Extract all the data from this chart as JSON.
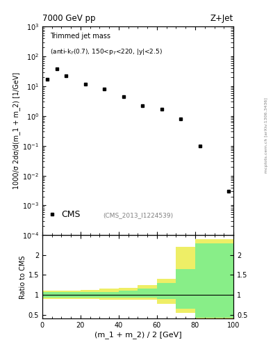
{
  "title_left": "7000 GeV pp",
  "title_right": "Z+Jet",
  "main_annotation": "Trimmed jet mass (anti-k$_T$(0.7), 150<p$_T$<220, |y|<2.5)",
  "cms_label": "CMS",
  "inspire_label": "(CMS_2013_I1224539)",
  "arxiv_label": "arXiv:1306.3436",
  "mcplots_label": "mcplots.cern.ch",
  "ylabel_main": "1000/σ 2dσ/d(m_1 + m_2) [1/GeV]",
  "ylabel_ratio": "Ratio to CMS",
  "xlabel": "(m_1 + m_2) / 2 [GeV]",
  "xlim": [
    0,
    100
  ],
  "ylim_main": [
    0.0001,
    1000.0
  ],
  "ylim_ratio": [
    0.4,
    2.5
  ],
  "data_x": [
    2.5,
    7.5,
    12.5,
    22.5,
    32.5,
    42.5,
    52.5,
    62.5,
    72.5,
    82.5,
    97.5
  ],
  "data_y": [
    17,
    38,
    22,
    12,
    8,
    4.5,
    2.2,
    1.7,
    0.8,
    0.1,
    0.003
  ],
  "ratio_bin_edges": [
    0,
    10,
    20,
    30,
    40,
    50,
    60,
    70,
    80,
    90,
    100
  ],
  "ratio_green_low": [
    0.93,
    0.93,
    0.93,
    0.93,
    0.93,
    0.93,
    0.9,
    0.65,
    0.42,
    0.42
  ],
  "ratio_green_high": [
    1.07,
    1.07,
    1.07,
    1.07,
    1.1,
    1.15,
    1.3,
    1.65,
    2.3,
    2.3
  ],
  "ratio_yellow_low": [
    0.9,
    0.9,
    0.9,
    0.88,
    0.87,
    0.87,
    0.78,
    0.55,
    0.08,
    0.08
  ],
  "ratio_yellow_high": [
    1.1,
    1.1,
    1.12,
    1.15,
    1.18,
    1.25,
    1.4,
    2.2,
    2.4,
    2.4
  ],
  "green_color": "#88EE88",
  "yellow_color": "#EEEE66",
  "background_color": "#ffffff"
}
